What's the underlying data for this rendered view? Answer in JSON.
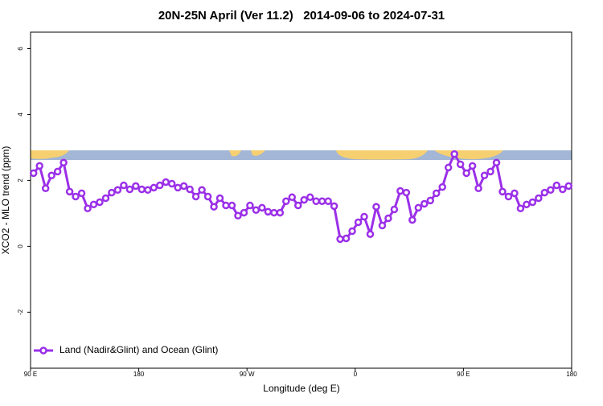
{
  "chart_data": {
    "type": "line",
    "title": "20N-25N April (Ver 11.2)   2014-09-06 to 2024-07-31",
    "x_label": "Longitude (deg E)",
    "y_label": "XCO2 - MLO trend (ppm)",
    "xlim": [
      90,
      540
    ],
    "xticks": [
      {
        "value": 90,
        "label": "90 E"
      },
      180,
      {
        "value": 270,
        "label": "90 W"
      },
      {
        "value": 360,
        "label": "0"
      },
      {
        "value": 450,
        "label": "90 E"
      },
      {
        "value": 540,
        "label": "180"
      }
    ],
    "ylim": [
      -3.7,
      6.5
    ],
    "yticks": [
      -2,
      0,
      2,
      4,
      6
    ],
    "x": [
      92.5,
      97.5,
      102.5,
      107.5,
      112.5,
      117.5,
      122.5,
      127.5,
      132.5,
      137.5,
      142.5,
      147.5,
      152.5,
      157.5,
      162.5,
      167.5,
      172.5,
      177.5,
      182.5,
      187.5,
      192.5,
      197.5,
      202.5,
      207.5,
      212.5,
      217.5,
      222.5,
      227.5,
      232.5,
      237.5,
      242.5,
      247.5,
      252.5,
      257.5,
      262.5,
      267.5,
      272.5,
      277.5,
      282.5,
      287.5,
      292.5,
      297.5,
      302.5,
      307.5,
      312.5,
      317.5,
      322.5,
      327.5,
      332.5,
      337.5,
      342.5,
      347.5,
      352.5,
      357.5,
      362.5,
      367.5,
      372.5,
      377.5,
      382.5,
      387.5,
      392.5,
      397.5,
      402.5,
      407.5,
      412.5,
      417.5,
      422.5,
      427.5,
      432.5,
      437.5,
      442.5,
      447.5,
      452.5,
      457.5,
      462.5,
      467.5,
      472.5,
      477.5,
      482.5,
      487.5,
      492.5,
      497.5,
      502.5,
      507.5,
      512.5,
      517.5,
      522.5,
      527.5,
      532.5,
      537.5
    ],
    "series": [
      {
        "name": "Land (Nadir&Glint) and Ocean (Glint)",
        "color": "#9b30e8",
        "values": [
          2.22,
          2.44,
          1.76,
          2.15,
          2.27,
          2.54,
          1.66,
          1.51,
          1.61,
          1.15,
          1.27,
          1.34,
          1.46,
          1.63,
          1.71,
          1.85,
          1.73,
          1.83,
          1.73,
          1.71,
          1.78,
          1.85,
          1.95,
          1.9,
          1.78,
          1.83,
          1.73,
          1.51,
          1.71,
          1.51,
          1.2,
          1.46,
          1.24,
          1.24,
          0.93,
          1.02,
          1.24,
          1.1,
          1.17,
          1.05,
          1.02,
          1.02,
          1.37,
          1.49,
          1.24,
          1.41,
          1.49,
          1.37,
          1.37,
          1.37,
          1.22,
          0.22,
          0.24,
          0.46,
          0.73,
          0.9,
          0.37,
          1.2,
          0.63,
          0.85,
          1.12,
          1.68,
          1.63,
          0.8,
          1.17,
          1.29,
          1.39,
          1.61,
          1.8,
          2.39,
          2.8,
          2.49,
          2.22,
          2.44,
          1.76,
          2.15,
          2.27,
          2.54,
          1.66,
          1.51,
          1.61,
          1.15,
          1.27,
          1.34,
          1.46,
          1.63,
          1.71,
          1.85,
          1.73,
          1.83
        ]
      }
    ],
    "legend": "bottom-left"
  }
}
